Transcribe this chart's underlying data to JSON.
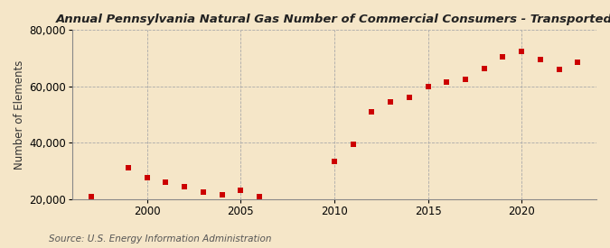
{
  "title": "Annual Pennsylvania Natural Gas Number of Commercial Consumers - Transported",
  "ylabel": "Number of Elements",
  "source": "Source: U.S. Energy Information Administration",
  "background_color": "#f5e6c8",
  "plot_background": "#f5e6c8",
  "marker_color": "#cc0000",
  "years": [
    1997,
    1999,
    2000,
    2001,
    2002,
    2003,
    2004,
    2005,
    2006,
    2010,
    2011,
    2012,
    2013,
    2014,
    2015,
    2016,
    2017,
    2018,
    2019,
    2020,
    2021,
    2022,
    2023
  ],
  "values": [
    21000,
    31000,
    27500,
    26000,
    24500,
    22500,
    21500,
    23000,
    21000,
    33500,
    39500,
    51000,
    54500,
    56000,
    60000,
    61500,
    62500,
    66500,
    70500,
    72500,
    69500,
    66000,
    68500
  ],
  "xlim": [
    1996,
    2024
  ],
  "ylim": [
    20000,
    80000
  ],
  "yticks": [
    20000,
    40000,
    60000,
    80000
  ],
  "xticks": [
    2000,
    2005,
    2010,
    2015,
    2020
  ],
  "grid_color": "#aaaaaa",
  "title_fontsize": 9.5,
  "label_fontsize": 8.5,
  "tick_fontsize": 8.5,
  "source_fontsize": 7.5
}
